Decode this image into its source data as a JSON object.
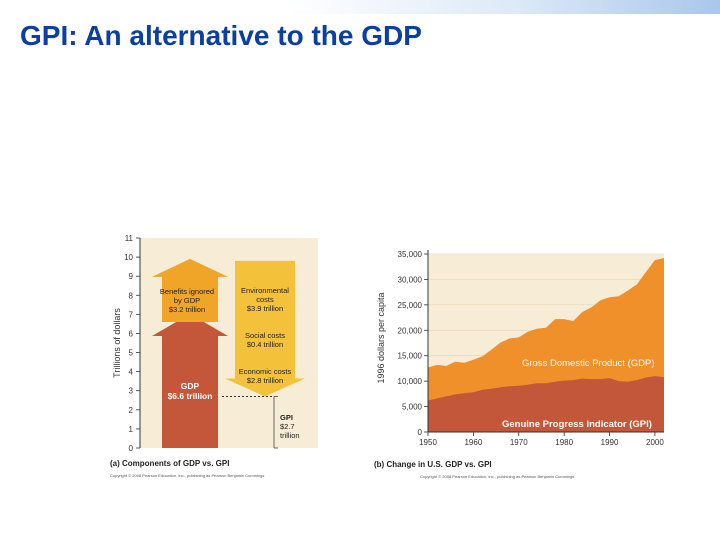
{
  "slide": {
    "title": "GPI: An alternative to the GDP"
  },
  "colors": {
    "title_blue": "#0b3fa3",
    "gdp_arrow": "#c4573a",
    "benefits_arrow": "#f0a428",
    "costs_arrow": "#f3c23a",
    "panel_bg": "#f7ecd6",
    "gdp_area": "#f0902a",
    "gpi_area": "#c2573a"
  },
  "chart_data": [
    {
      "type": "bar",
      "title": "(a) Components of GDP vs. GPI",
      "ylabel": "Trillions of dollars",
      "ylim": [
        0,
        11
      ],
      "yticks": [
        "0",
        "1",
        "2",
        "3",
        "4",
        "5",
        "6",
        "7",
        "8",
        "9",
        "10",
        "11"
      ],
      "components": [
        {
          "name": "gdp",
          "label_line1": "GDP",
          "label_line2": "$6.6 trillion",
          "base": 0,
          "top": 6.6
        },
        {
          "name": "benefits",
          "label_line1": "Benefits ignored",
          "label_line2": "by GDP",
          "label_line3": "$3.2 trillion",
          "base": 6.6,
          "top": 9.8
        },
        {
          "name": "environmental",
          "label_line1": "Environmental",
          "label_line2": "costs",
          "label_line3": "$3.9 trillion",
          "top": 9.8,
          "bottom": 5.9
        },
        {
          "name": "social",
          "label_line1": "Social costs",
          "label_line2": "$0.4 trillion",
          "top": 5.9,
          "bottom": 5.5
        },
        {
          "name": "economic",
          "label_line1": "Economic costs",
          "label_line2": "$2.8 trillion",
          "top": 5.5,
          "bottom": 2.7
        },
        {
          "name": "gpi",
          "label_line1": "GPI",
          "label_line2": "$2.7",
          "label_line3": "trillion",
          "value": 2.7
        }
      ],
      "credit": "Copyright © 2008 Pearson Education, Inc., publishing as Pearson Benjamin Cummings"
    },
    {
      "type": "area",
      "title": "(b) Change in U.S. GDP vs. GPI",
      "ylabel": "1996 dollars per capita",
      "xlim": [
        1950,
        2002
      ],
      "ylim": [
        0,
        35000
      ],
      "xticks": [
        "1950",
        "1960",
        "1970",
        "1980",
        "1990",
        "2000"
      ],
      "yticks": [
        "0",
        "5,000",
        "10,000",
        "15,000",
        "20,000",
        "25,000",
        "30,000",
        "35,000"
      ],
      "series": [
        {
          "name": "Gross Domestic Product (GDP)",
          "x": [
            1950,
            1952,
            1954,
            1956,
            1958,
            1960,
            1962,
            1964,
            1966,
            1968,
            1970,
            1972,
            1974,
            1976,
            1978,
            1980,
            1982,
            1984,
            1986,
            1988,
            1990,
            1992,
            1994,
            1996,
            1998,
            2000,
            2002
          ],
          "values": [
            12700,
            13200,
            13000,
            13800,
            13600,
            14200,
            14900,
            16200,
            17600,
            18400,
            18600,
            19700,
            20300,
            20500,
            22200,
            22200,
            21800,
            23600,
            24500,
            25900,
            26500,
            26700,
            27800,
            29000,
            31400,
            33800,
            34200
          ]
        },
        {
          "name": "Genuine Progress Indicator (GPI)",
          "x": [
            1950,
            1952,
            1954,
            1956,
            1958,
            1960,
            1962,
            1964,
            1966,
            1968,
            1970,
            1972,
            1974,
            1976,
            1978,
            1980,
            1982,
            1984,
            1986,
            1988,
            1990,
            1992,
            1994,
            1996,
            1998,
            2000,
            2002
          ],
          "values": [
            6200,
            6600,
            7000,
            7400,
            7600,
            7800,
            8300,
            8500,
            8800,
            9000,
            9100,
            9300,
            9600,
            9600,
            9900,
            10100,
            10200,
            10500,
            10400,
            10400,
            10600,
            10000,
            9900,
            10200,
            10700,
            11000,
            10800
          ]
        }
      ],
      "credit": "Copyright © 2008 Pearson Education, Inc., publishing as Pearson Benjamin Cummings"
    }
  ]
}
